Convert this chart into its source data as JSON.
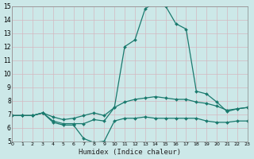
{
  "xlabel": "Humidex (Indice chaleur)",
  "x": [
    0,
    1,
    2,
    3,
    4,
    5,
    6,
    7,
    8,
    9,
    10,
    11,
    12,
    13,
    14,
    15,
    16,
    17,
    18,
    19,
    20,
    21,
    22,
    23
  ],
  "line_max": [
    6.9,
    6.9,
    6.9,
    7.1,
    6.5,
    6.3,
    6.3,
    6.3,
    6.6,
    6.5,
    7.5,
    12.0,
    12.5,
    14.8,
    15.3,
    15.0,
    13.7,
    13.3,
    8.7,
    8.5,
    7.9,
    7.2,
    7.4,
    7.5
  ],
  "line_avg": [
    6.9,
    6.9,
    6.9,
    7.1,
    6.8,
    6.6,
    6.7,
    6.9,
    7.1,
    6.9,
    7.5,
    7.9,
    8.1,
    8.2,
    8.3,
    8.2,
    8.1,
    8.1,
    7.9,
    7.8,
    7.6,
    7.3,
    7.4,
    7.5
  ],
  "line_min": [
    6.9,
    6.9,
    6.9,
    7.1,
    6.4,
    6.2,
    6.2,
    5.2,
    4.9,
    5.0,
    6.5,
    6.7,
    6.7,
    6.8,
    6.7,
    6.7,
    6.7,
    6.7,
    6.7,
    6.5,
    6.4,
    6.4,
    6.5,
    6.5
  ],
  "color": "#1a7a6e",
  "bg_color": "#cce8e8",
  "grid_color": "#d4b8c0",
  "ylim": [
    5,
    15
  ],
  "xlim": [
    0,
    23
  ],
  "yticks": [
    5,
    6,
    7,
    8,
    9,
    10,
    11,
    12,
    13,
    14,
    15
  ],
  "xticks": [
    0,
    1,
    2,
    3,
    4,
    5,
    6,
    7,
    8,
    9,
    10,
    11,
    12,
    13,
    14,
    15,
    16,
    17,
    18,
    19,
    20,
    21,
    22,
    23
  ],
  "markersize": 2.0,
  "linewidth": 0.9,
  "tick_fontsize_x": 4.5,
  "tick_fontsize_y": 5.5,
  "xlabel_fontsize": 6.5
}
